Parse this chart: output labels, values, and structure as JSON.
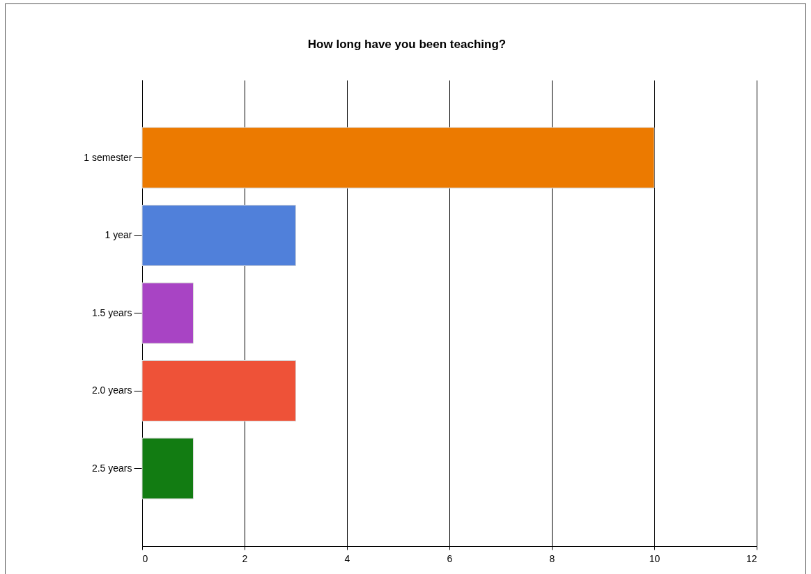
{
  "chart_data": {
    "type": "bar",
    "title": "How long have you been teaching?",
    "orientation": "horizontal",
    "categories": [
      "1 semester",
      "1 year",
      "1.5 years",
      "2.0 years",
      "2.5 years"
    ],
    "values": [
      10,
      3,
      1,
      3,
      1
    ],
    "colors": [
      "#ec7a00",
      "#5080da",
      "#a844c4",
      "#ee5238",
      "#127c12"
    ],
    "xlim": [
      0,
      12
    ],
    "xticks": [
      0,
      2,
      4,
      6,
      8,
      10,
      12
    ],
    "grid": "x"
  }
}
